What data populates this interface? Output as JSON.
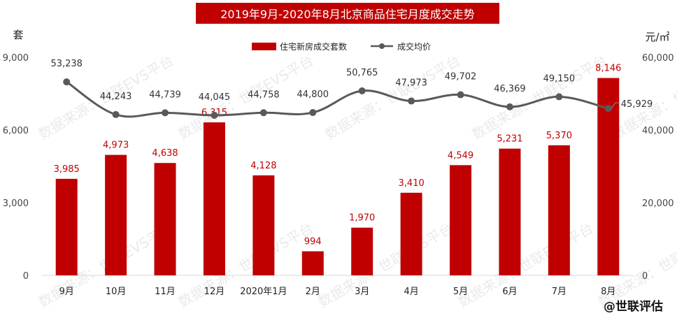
{
  "chart_data": {
    "type": "bar+line",
    "title": "2019年9月-2020年8月北京商品住宅月度成交走势",
    "categories": [
      "9月",
      "10月",
      "11月",
      "12月",
      "2020年1月",
      "2月",
      "3月",
      "4月",
      "5月",
      "6月",
      "7月",
      "8月"
    ],
    "series": [
      {
        "name": "住宅新房成交套数",
        "type": "bar",
        "axis": "left",
        "color": "#c00000",
        "values": [
          3985,
          4973,
          4638,
          6315,
          4128,
          994,
          1970,
          3410,
          4549,
          5231,
          5370,
          8146
        ],
        "labels": [
          "3,985",
          "4,973",
          "4,638",
          "6,315",
          "4,128",
          "994",
          "1,970",
          "3,410",
          "4,549",
          "5,231",
          "5,370",
          "8,146"
        ]
      },
      {
        "name": "成交均价",
        "type": "line",
        "axis": "right",
        "color": "#595959",
        "values": [
          53238,
          44243,
          44739,
          44045,
          44758,
          44800,
          50765,
          47973,
          49702,
          46369,
          49150,
          45929
        ],
        "labels": [
          "53,238",
          "44,243",
          "44,739",
          "44,045",
          "44,758",
          "44,800",
          "50,765",
          "47,973",
          "49,702",
          "46,369",
          "49,150",
          "45,929"
        ]
      }
    ],
    "left_axis": {
      "label": "套",
      "ylim": [
        0,
        9000
      ],
      "ticks": [
        "0",
        "3,000",
        "6,000",
        "9,000"
      ]
    },
    "right_axis": {
      "label": "元/㎡",
      "ylim": [
        0,
        60000
      ],
      "ticks": [
        "0",
        "20,000",
        "40,000",
        "60,000"
      ]
    },
    "legend_position": "top-center",
    "grid": false
  },
  "watermark": "数据来源：世联EVS平台",
  "brand": "@世联评估"
}
